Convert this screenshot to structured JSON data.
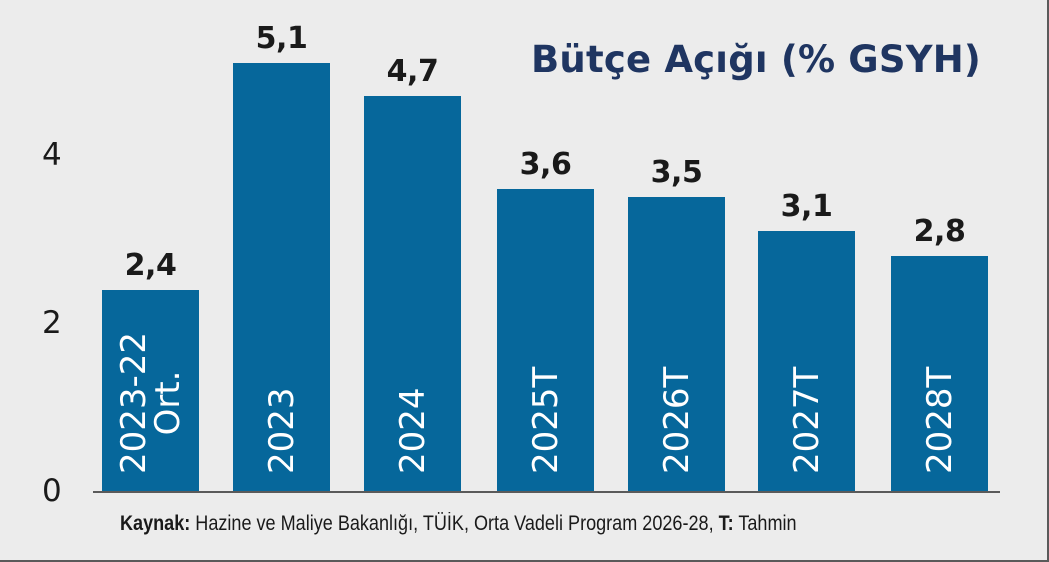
{
  "chart_data": {
    "type": "bar",
    "title": "Bütçe Açığı (% GSYH)",
    "xlabel": "",
    "ylabel": "",
    "ylim": [
      0,
      5.5
    ],
    "yticks": [
      0,
      2,
      4
    ],
    "grid": false,
    "categories": [
      "2023-22 Ort.",
      "2023",
      "2024",
      "2025T",
      "2026T",
      "2027T",
      "2028T"
    ],
    "values": [
      2.4,
      5.1,
      4.7,
      3.6,
      3.5,
      3.1,
      2.8
    ],
    "value_labels": [
      "2,4",
      "5,1",
      "4,7",
      "3,6",
      "3,5",
      "3,1",
      "2,8"
    ],
    "bar_color": "#06679b",
    "annotations": [
      "T: Tahmin"
    ]
  },
  "title": "Bütçe Açığı (% GSYH)",
  "yticks": [
    "4",
    "2",
    "0"
  ],
  "bars": [
    {
      "label_line1": "2023-22",
      "label_line2": "Ort.",
      "value": "2,4"
    },
    {
      "label_line1": "2023",
      "label_line2": "",
      "value": "5,1"
    },
    {
      "label_line1": "2024",
      "label_line2": "",
      "value": "4,7"
    },
    {
      "label_line1": "2025T",
      "label_line2": "",
      "value": "3,6"
    },
    {
      "label_line1": "2026T",
      "label_line2": "",
      "value": "3,5"
    },
    {
      "label_line1": "2027T",
      "label_line2": "",
      "value": "3,1"
    },
    {
      "label_line1": "2028T",
      "label_line2": "",
      "value": "2,8"
    }
  ],
  "source": {
    "label": "Kaynak:",
    "text": " Hazine ve Maliye Bakanlığı, TÜİK, Orta Vadeli Program 2026-28, ",
    "note_label": "T:",
    "note_text": " Tahmin"
  },
  "colors": {
    "bar": "#06679b",
    "background": "#ececec",
    "title": "#1f3561",
    "text": "#1a1a1a"
  }
}
